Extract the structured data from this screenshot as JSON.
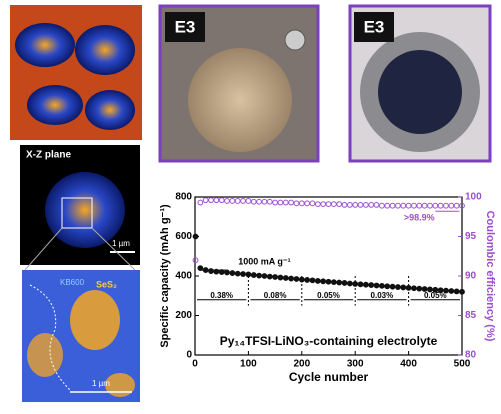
{
  "panels": {
    "render_label": "X-Z plane",
    "scale_bar_1": "1 µm",
    "map_label_1": "KB600",
    "map_label_2": "SeS₂",
    "scale_bar_2": "1 µm",
    "photo_1_label": "E3",
    "photo_2_label": "E3"
  },
  "chart_data": {
    "type": "scatter",
    "title": "Py₁₄TFSI-LiNO₃-containing electrolyte",
    "x_label": "Cycle number",
    "y_label": "Specific capacity (mAh g⁻¹)",
    "y2_label": "Coulombic efficiency (%)",
    "annotations": [
      "1000 mA g⁻¹",
      ">98.9%",
      "0.38%",
      "0.08%",
      "0.05%",
      "0.03%",
      "0.05%"
    ],
    "x": [
      1,
      10,
      20,
      30,
      40,
      50,
      60,
      70,
      80,
      90,
      100,
      110,
      120,
      130,
      140,
      150,
      160,
      170,
      180,
      190,
      200,
      210,
      220,
      230,
      240,
      250,
      260,
      270,
      280,
      290,
      300,
      310,
      320,
      330,
      340,
      350,
      360,
      370,
      380,
      390,
      400,
      410,
      420,
      430,
      440,
      450,
      460,
      470,
      480,
      490,
      500
    ],
    "series": [
      {
        "name": "Specific capacity",
        "color": "#111111",
        "axis": "y",
        "marker": "filled",
        "values": [
          600,
          440,
          430,
          425,
          422,
          420,
          418,
          415,
          412,
          410,
          408,
          405,
          402,
          400,
          397,
          395,
          392,
          390,
          387,
          385,
          382,
          380,
          378,
          375,
          373,
          371,
          369,
          367,
          365,
          362,
          360,
          358,
          356,
          354,
          352,
          350,
          348,
          346,
          344,
          342,
          340,
          338,
          336,
          334,
          332,
          330,
          328,
          326,
          324,
          322,
          320
        ]
      },
      {
        "name": "Coulombic efficiency",
        "color": "#9b4fd0",
        "axis": "y2",
        "marker": "open",
        "values": [
          92,
          99.3,
          99.6,
          99.6,
          99.6,
          99.6,
          99.5,
          99.5,
          99.5,
          99.5,
          99.5,
          99.4,
          99.4,
          99.4,
          99.4,
          99.3,
          99.3,
          99.3,
          99.3,
          99.2,
          99.2,
          99.2,
          99.2,
          99.1,
          99.1,
          99.1,
          99.1,
          99.1,
          99.0,
          99.0,
          99.0,
          99.0,
          99.0,
          99.0,
          99.0,
          98.9,
          98.9,
          98.9,
          98.9,
          98.9,
          98.9,
          98.9,
          98.9,
          98.9,
          98.9,
          98.9,
          98.9,
          98.9,
          98.9,
          98.9,
          98.9
        ]
      }
    ],
    "xlim": [
      0,
      500
    ],
    "xticks": [
      0,
      100,
      200,
      300,
      400,
      500
    ],
    "ylim": [
      0,
      800
    ],
    "yticks": [
      0,
      200,
      400,
      600,
      800
    ],
    "y2lim": [
      80,
      100
    ],
    "y2ticks": [
      80,
      85,
      90,
      95,
      100
    ]
  }
}
